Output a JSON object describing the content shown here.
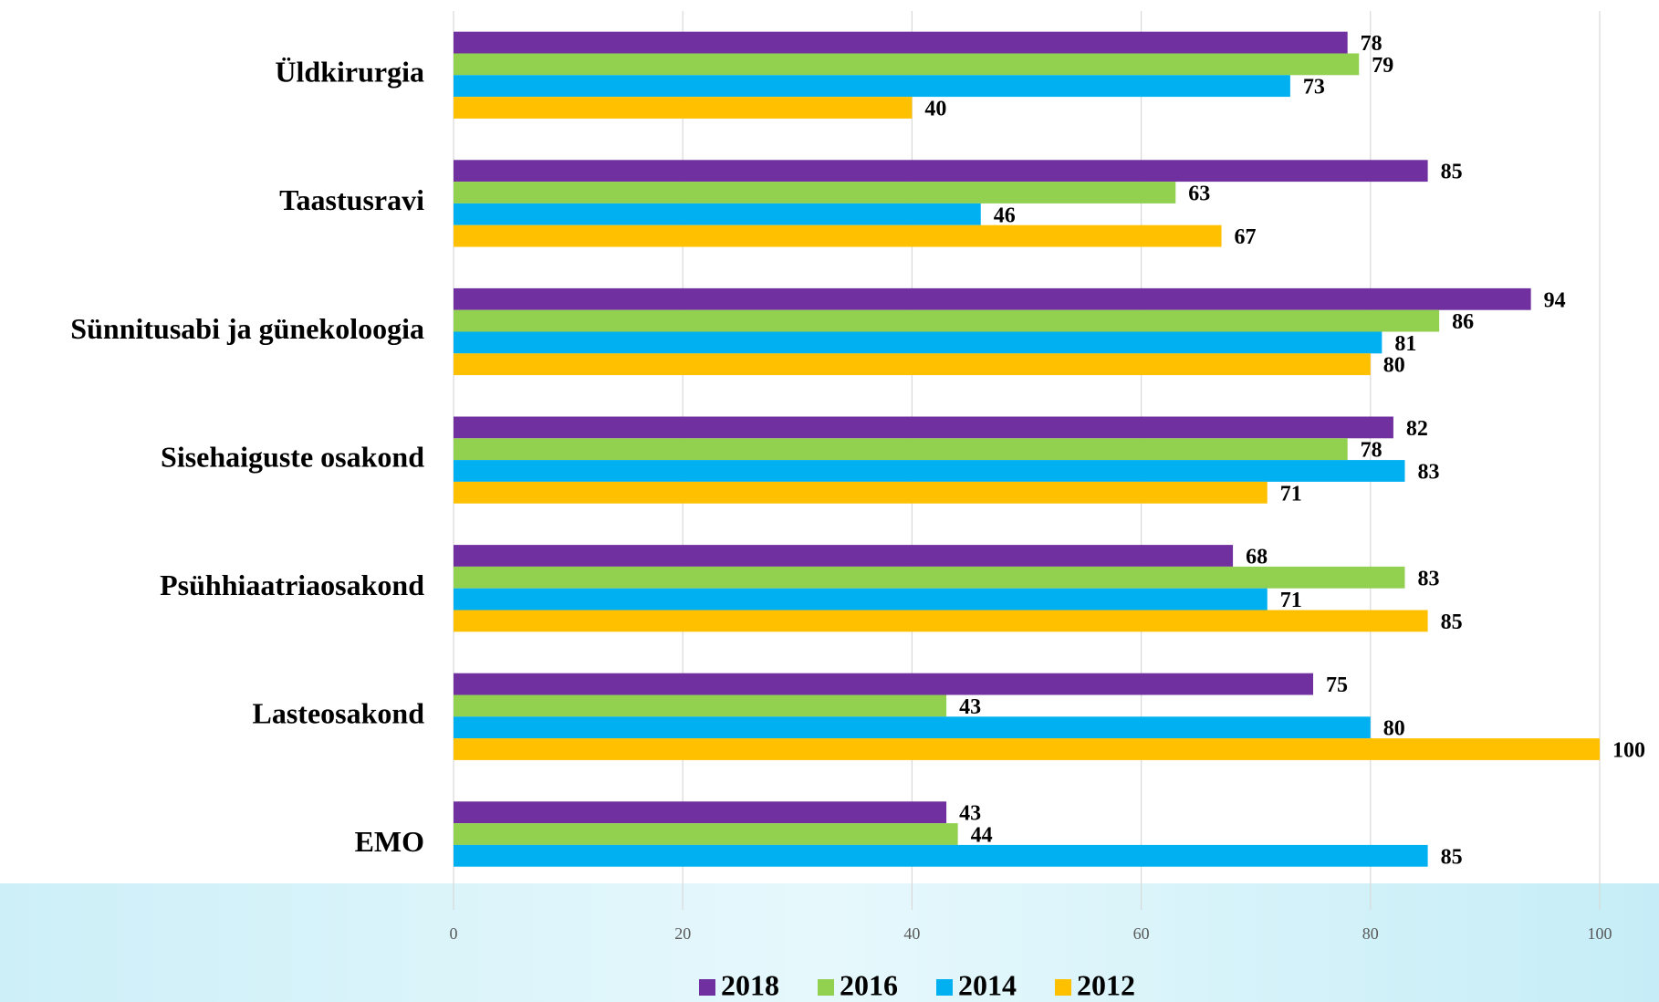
{
  "chart_data": {
    "type": "bar",
    "orientation": "horizontal",
    "categories": [
      "Üldkirurgia",
      "Taastusravi",
      "Sünnitusabi ja günekoloogia",
      "Sisehaiguste osakond",
      "Psühhiaatriaosakond",
      "Lasteosakond",
      "EMO"
    ],
    "series": [
      {
        "name": "2018",
        "color": "#7030a0",
        "values": [
          78,
          85,
          94,
          82,
          68,
          75,
          43
        ]
      },
      {
        "name": "2016",
        "color": "#92d050",
        "values": [
          79,
          63,
          86,
          78,
          83,
          43,
          44
        ]
      },
      {
        "name": "2014",
        "color": "#00b0f0",
        "values": [
          73,
          46,
          81,
          83,
          71,
          80,
          85
        ]
      },
      {
        "name": "2012",
        "color": "#ffc000",
        "values": [
          40,
          67,
          80,
          71,
          85,
          100,
          null
        ]
      }
    ],
    "xlim": [
      0,
      100
    ],
    "xticks": [
      0,
      20,
      40,
      60,
      80,
      100
    ],
    "grid": true,
    "legend": "bottom"
  }
}
